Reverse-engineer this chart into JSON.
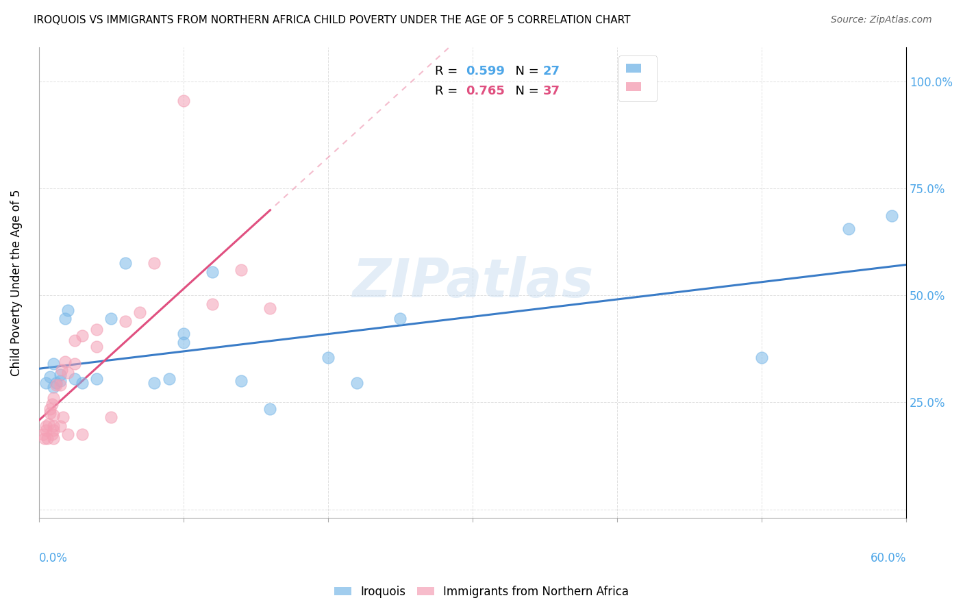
{
  "title": "IROQUOIS VS IMMIGRANTS FROM NORTHERN AFRICA CHILD POVERTY UNDER THE AGE OF 5 CORRELATION CHART",
  "source": "Source: ZipAtlas.com",
  "ylabel": "Child Poverty Under the Age of 5",
  "xlim": [
    0.0,
    0.6
  ],
  "ylim": [
    -0.02,
    1.08
  ],
  "watermark": "ZIPatlas",
  "legend1_r": "0.599",
  "legend1_n": "27",
  "legend2_r": "0.765",
  "legend2_n": "37",
  "iroquois_color": "#7ab8e8",
  "northern_africa_color": "#f4a0b5",
  "iroquois_line_color": "#3a7cc7",
  "northern_africa_line_color": "#e05080",
  "northern_africa_extrap_color": "#f0a0b8",
  "iroquois_x": [
    0.005,
    0.008,
    0.01,
    0.01,
    0.012,
    0.015,
    0.015,
    0.018,
    0.02,
    0.025,
    0.03,
    0.04,
    0.05,
    0.06,
    0.08,
    0.09,
    0.1,
    0.1,
    0.12,
    0.14,
    0.16,
    0.2,
    0.22,
    0.25,
    0.5,
    0.56,
    0.59
  ],
  "iroquois_y": [
    0.295,
    0.31,
    0.285,
    0.34,
    0.295,
    0.3,
    0.315,
    0.445,
    0.465,
    0.305,
    0.295,
    0.305,
    0.445,
    0.575,
    0.295,
    0.305,
    0.39,
    0.41,
    0.555,
    0.3,
    0.235,
    0.355,
    0.295,
    0.445,
    0.355,
    0.655,
    0.685
  ],
  "northern_africa_x": [
    0.003,
    0.004,
    0.005,
    0.005,
    0.006,
    0.007,
    0.008,
    0.008,
    0.009,
    0.009,
    0.01,
    0.01,
    0.01,
    0.01,
    0.01,
    0.012,
    0.015,
    0.015,
    0.016,
    0.017,
    0.018,
    0.02,
    0.02,
    0.025,
    0.025,
    0.03,
    0.03,
    0.04,
    0.04,
    0.05,
    0.06,
    0.07,
    0.08,
    0.1,
    0.12,
    0.14,
    0.16
  ],
  "northern_africa_y": [
    0.175,
    0.165,
    0.185,
    0.195,
    0.165,
    0.2,
    0.225,
    0.235,
    0.175,
    0.245,
    0.165,
    0.185,
    0.195,
    0.22,
    0.26,
    0.29,
    0.195,
    0.29,
    0.325,
    0.215,
    0.345,
    0.175,
    0.32,
    0.34,
    0.395,
    0.175,
    0.405,
    0.38,
    0.42,
    0.215,
    0.44,
    0.46,
    0.575,
    0.955,
    0.48,
    0.56,
    0.47
  ],
  "yticks": [
    0.0,
    0.25,
    0.5,
    0.75,
    1.0
  ],
  "ytick_labels": [
    "",
    "25.0%",
    "50.0%",
    "75.0%",
    "100.0%"
  ],
  "xticks": [
    0.0,
    0.1,
    0.2,
    0.3,
    0.4,
    0.5,
    0.6
  ]
}
